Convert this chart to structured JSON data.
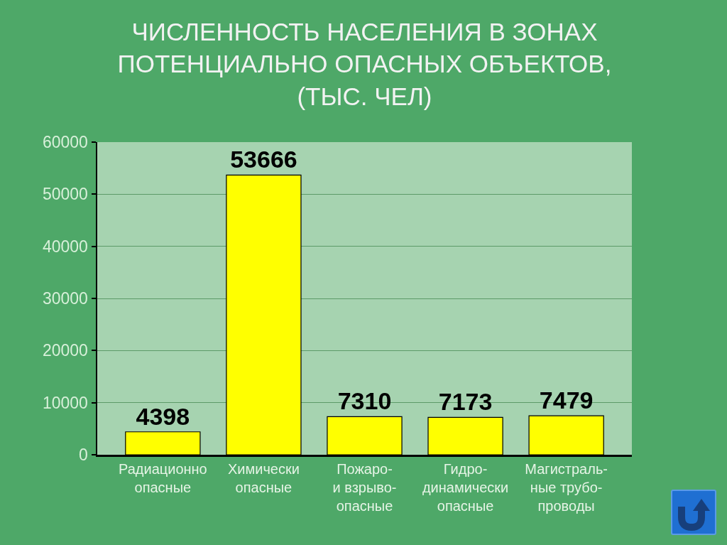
{
  "chart_data": {
    "type": "bar",
    "title": "ЧИСЛЕННОСТЬ НАСЕЛЕНИЯ В ЗОНАХ\nПОТЕНЦИАЛЬНО ОПАСНЫХ ОБЪЕКТОВ,\n(ТЫС. ЧЕЛ)",
    "categories": [
      "Радиационно\nопасные",
      "Химически\nопасные",
      "Пожаро-\nи взрыво-\nопасные",
      "Гидро-\nдинамически\nопасные",
      "Магистраль-\nные трубо-\nпроводы"
    ],
    "values": [
      4398,
      53666,
      7310,
      7173,
      7479
    ],
    "color": "#ffff00",
    "ylim": [
      0,
      60000
    ],
    "yticks": [
      0,
      10000,
      20000,
      30000,
      40000,
      50000,
      60000
    ],
    "grid": "y",
    "data_labels": true
  }
}
